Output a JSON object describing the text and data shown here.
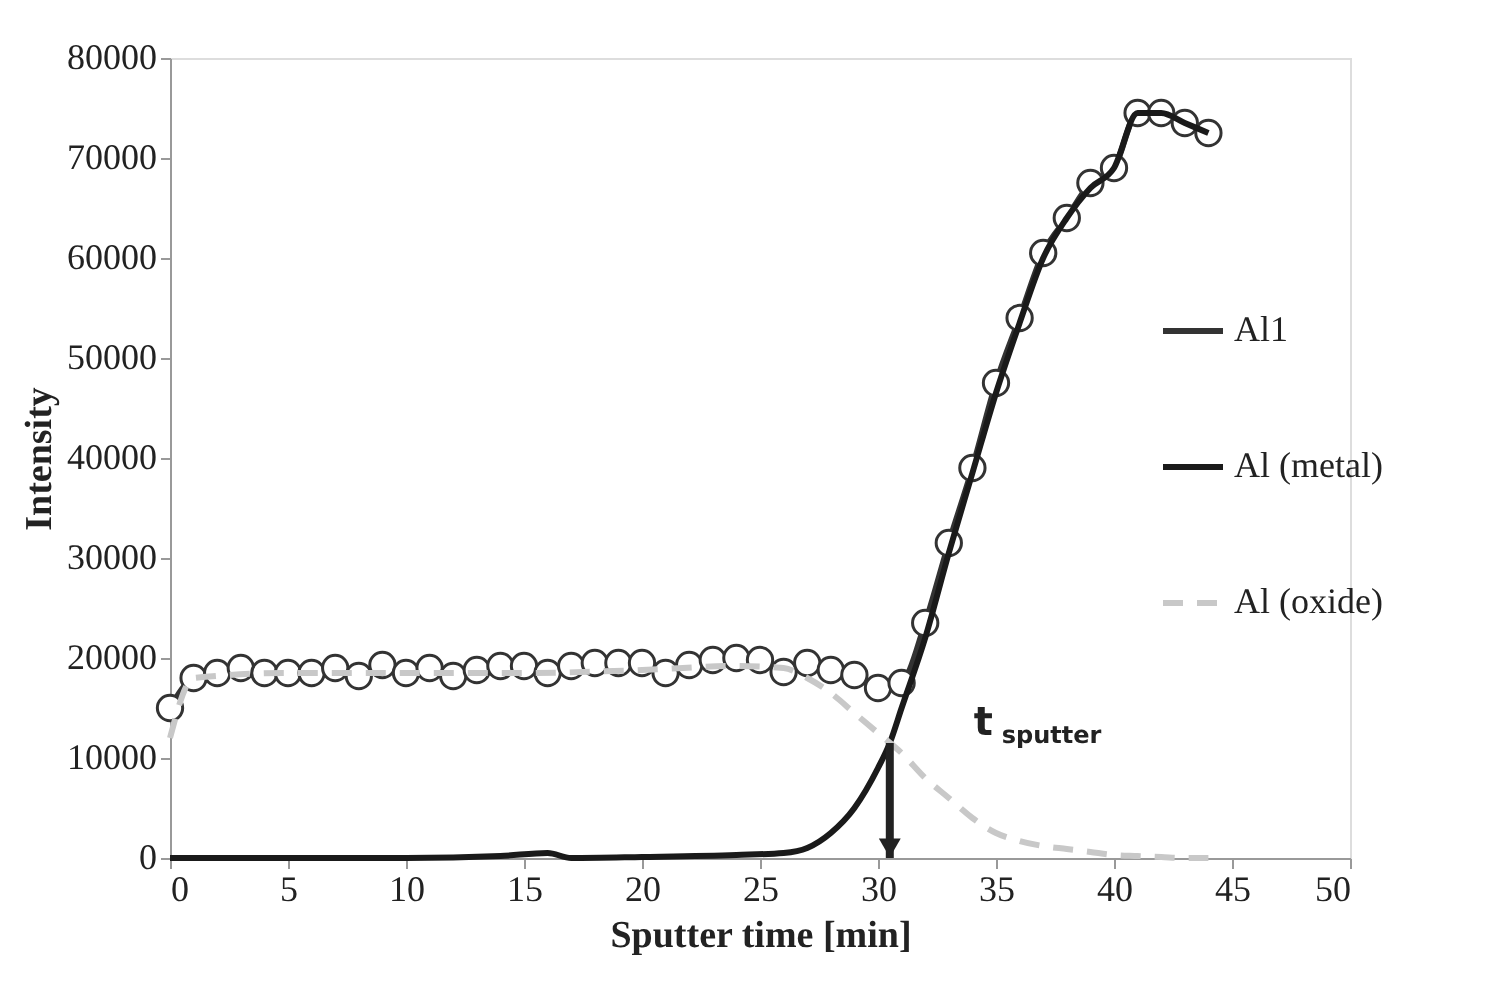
{
  "chart_data": {
    "type": "line",
    "xlabel": "Sputter time [min]",
    "ylabel": "Intensity",
    "xlim": [
      0,
      50
    ],
    "xticks": [
      0,
      5,
      10,
      15,
      20,
      25,
      30,
      35,
      40,
      45,
      50
    ],
    "ylim": [
      0,
      80000
    ],
    "yticks": [
      0,
      10000,
      20000,
      30000,
      40000,
      50000,
      60000,
      70000,
      80000
    ],
    "grid": false,
    "legend": "right",
    "series": [
      {
        "name": "Al1",
        "color": "#333333",
        "marker": "circle",
        "line_style": "solid",
        "x": [
          0,
          1,
          2,
          3,
          4,
          5,
          6,
          7,
          8,
          9,
          10,
          11,
          12,
          13,
          14,
          15,
          16,
          17,
          18,
          19,
          20,
          21,
          22,
          23,
          24,
          25,
          26,
          27,
          28,
          29,
          30,
          31,
          32,
          33,
          34,
          35,
          36,
          37,
          38,
          39,
          40,
          41,
          42,
          43,
          44
        ],
        "values": [
          15000,
          18000,
          18500,
          19000,
          18500,
          18500,
          18500,
          19000,
          18200,
          19300,
          18500,
          19000,
          18200,
          18800,
          19200,
          19200,
          18500,
          19200,
          19500,
          19500,
          19500,
          18500,
          19300,
          19800,
          20000,
          19800,
          18600,
          19500,
          18800,
          18300,
          17000,
          17500,
          23500,
          31500,
          39000,
          47500,
          54000,
          60500,
          64000,
          67500,
          69000,
          74500,
          74500,
          73500,
          72500
        ]
      },
      {
        "name": "Al (metal)",
        "color": "#1a1a1a",
        "marker": "none",
        "line_style": "solid",
        "x": [
          0,
          9,
          10,
          14,
          16,
          17,
          20,
          24,
          26,
          27,
          28,
          29,
          30,
          30.5,
          31,
          32,
          33,
          34,
          35,
          36,
          37,
          38,
          39,
          40,
          41,
          42,
          43,
          44
        ],
        "values": [
          0,
          0,
          0,
          200,
          500,
          0,
          100,
          300,
          500,
          1000,
          2500,
          5000,
          9000,
          11500,
          15000,
          22000,
          30500,
          38500,
          46500,
          53500,
          60000,
          64000,
          67000,
          69000,
          74500,
          74500,
          73500,
          72500
        ]
      },
      {
        "name": "Al (oxide)",
        "color": "#c8c8c8",
        "marker": "none",
        "line_style": "dashed",
        "x": [
          0,
          1,
          5,
          10,
          15,
          20,
          24,
          26,
          27,
          28,
          29,
          30,
          31,
          32,
          33,
          34,
          35,
          36,
          37,
          38,
          39,
          40,
          41,
          42,
          43,
          44
        ],
        "values": [
          12000,
          18000,
          18500,
          18500,
          18500,
          18800,
          19200,
          19000,
          18000,
          16500,
          14500,
          12500,
          10500,
          8000,
          6000,
          4000,
          2500,
          1700,
          1200,
          900,
          600,
          300,
          200,
          100,
          0,
          0
        ]
      }
    ],
    "annotations": [
      {
        "text": "t$_{sputter}$",
        "x": 30.5,
        "y": 11500
      }
    ]
  }
}
